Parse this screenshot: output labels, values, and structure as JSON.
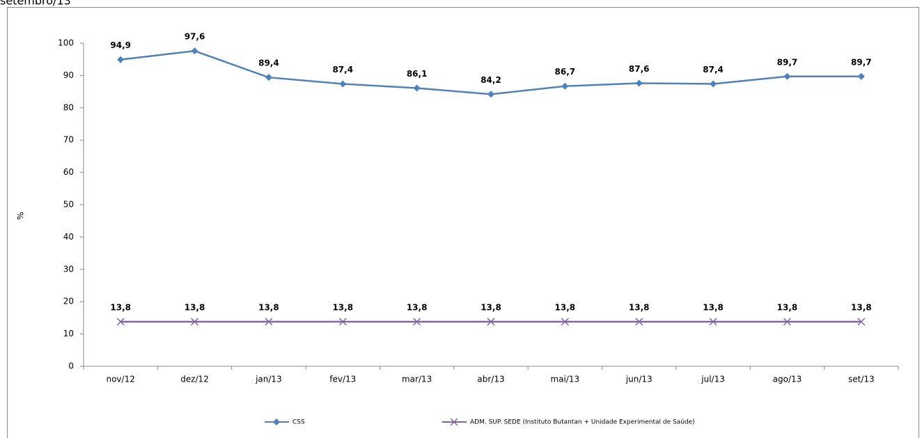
{
  "chart_data": {
    "type": "line",
    "title": "setembro/13",
    "y_label": "%",
    "categories": [
      "nov/12",
      "dez/12",
      "jan/13",
      "fev/13",
      "mar/13",
      "abr/13",
      "mai/13",
      "jun/13",
      "jul/13",
      "ago/13",
      "set/13"
    ],
    "series": [
      {
        "name": "CSS",
        "color": "#4f81bd",
        "marker": "diamond",
        "values": [
          94.9,
          97.6,
          89.4,
          87.4,
          86.1,
          84.2,
          86.7,
          87.6,
          87.4,
          89.7,
          89.7
        ],
        "value_labels": [
          "94,9",
          "97,6",
          "89,4",
          "87,4",
          "86,1",
          "84,2",
          "86,7",
          "87,6",
          "87,4",
          "89,7",
          "89,7"
        ]
      },
      {
        "name": "ADM. SUP. SEDE (Instituto Butantan + Unidade Experimental de Saúde)",
        "color": "#8064a2",
        "marker": "x",
        "values": [
          13.8,
          13.8,
          13.8,
          13.8,
          13.8,
          13.8,
          13.8,
          13.8,
          13.8,
          13.8,
          13.8
        ],
        "value_labels": [
          "13,8",
          "13,8",
          "13,8",
          "13,8",
          "13,8",
          "13,8",
          "13,8",
          "13,8",
          "13,8",
          "13,8",
          "13,8"
        ]
      }
    ],
    "ylim": [
      0,
      100
    ],
    "yticks": [
      0,
      10,
      20,
      30,
      40,
      50,
      60,
      70,
      80,
      90,
      100
    ],
    "grid": false,
    "legend": "bottom"
  }
}
